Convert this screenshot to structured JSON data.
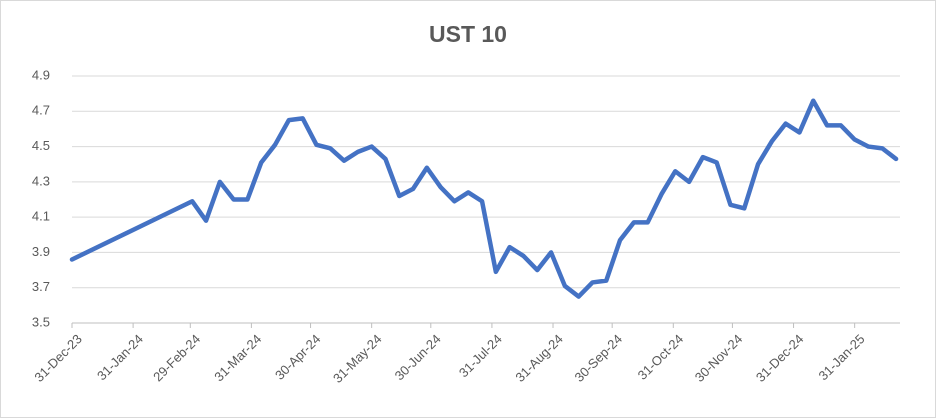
{
  "chart_data": {
    "type": "line",
    "title": "UST 10",
    "x": [
      "2023-12-31",
      "2024-03-01",
      "2024-03-08",
      "2024-03-15",
      "2024-03-22",
      "2024-03-29",
      "2024-04-05",
      "2024-04-12",
      "2024-04-19",
      "2024-04-26",
      "2024-05-03",
      "2024-05-10",
      "2024-05-17",
      "2024-05-24",
      "2024-05-31",
      "2024-06-07",
      "2024-06-14",
      "2024-06-21",
      "2024-06-28",
      "2024-07-05",
      "2024-07-12",
      "2024-07-19",
      "2024-07-26",
      "2024-08-02",
      "2024-08-09",
      "2024-08-16",
      "2024-08-23",
      "2024-08-30",
      "2024-09-06",
      "2024-09-13",
      "2024-09-20",
      "2024-09-27",
      "2024-10-04",
      "2024-10-11",
      "2024-10-18",
      "2024-10-25",
      "2024-11-01",
      "2024-11-08",
      "2024-11-15",
      "2024-11-22",
      "2024-11-29",
      "2024-12-06",
      "2024-12-13",
      "2024-12-20",
      "2024-12-27",
      "2025-01-03",
      "2025-01-10",
      "2025-01-17",
      "2025-01-24",
      "2025-01-31",
      "2025-02-07",
      "2025-02-14",
      "2025-02-21"
    ],
    "series": [
      {
        "name": "UST 10",
        "color": "#4472c4",
        "values": [
          3.86,
          4.19,
          4.08,
          4.3,
          4.2,
          4.2,
          4.41,
          4.51,
          4.65,
          4.66,
          4.51,
          4.49,
          4.42,
          4.47,
          4.5,
          4.43,
          4.22,
          4.26,
          4.38,
          4.27,
          4.19,
          4.24,
          4.19,
          3.79,
          3.93,
          3.88,
          3.8,
          3.9,
          3.71,
          3.65,
          3.73,
          3.74,
          3.97,
          4.07,
          4.07,
          4.23,
          4.36,
          4.3,
          4.44,
          4.41,
          4.17,
          4.15,
          4.4,
          4.53,
          4.63,
          4.58,
          4.76,
          4.62,
          4.62,
          4.54,
          4.5,
          4.49,
          4.43
        ]
      }
    ],
    "xlim": [
      "2023-12-31",
      "2025-02-23"
    ],
    "xticks": [
      {
        "value": "2023-12-31",
        "label": "31-Dec-23"
      },
      {
        "value": "2024-01-31",
        "label": "31-Jan-24"
      },
      {
        "value": "2024-02-29",
        "label": "29-Feb-24"
      },
      {
        "value": "2024-03-31",
        "label": "31-Mar-24"
      },
      {
        "value": "2024-04-30",
        "label": "30-Apr-24"
      },
      {
        "value": "2024-05-31",
        "label": "31-May-24"
      },
      {
        "value": "2024-06-30",
        "label": "30-Jun-24"
      },
      {
        "value": "2024-07-31",
        "label": "31-Jul-24"
      },
      {
        "value": "2024-08-31",
        "label": "31-Aug-24"
      },
      {
        "value": "2024-09-30",
        "label": "30-Sep-24"
      },
      {
        "value": "2024-10-31",
        "label": "31-Oct-24"
      },
      {
        "value": "2024-11-30",
        "label": "30-Nov-24"
      },
      {
        "value": "2024-12-31",
        "label": "31-Dec-24"
      },
      {
        "value": "2025-01-31",
        "label": "31-Jan-25"
      }
    ],
    "ylim": [
      3.5,
      4.9
    ],
    "yticks": [
      3.5,
      3.7,
      3.9,
      4.1,
      4.3,
      4.5,
      4.7,
      4.9
    ],
    "grid": true
  }
}
